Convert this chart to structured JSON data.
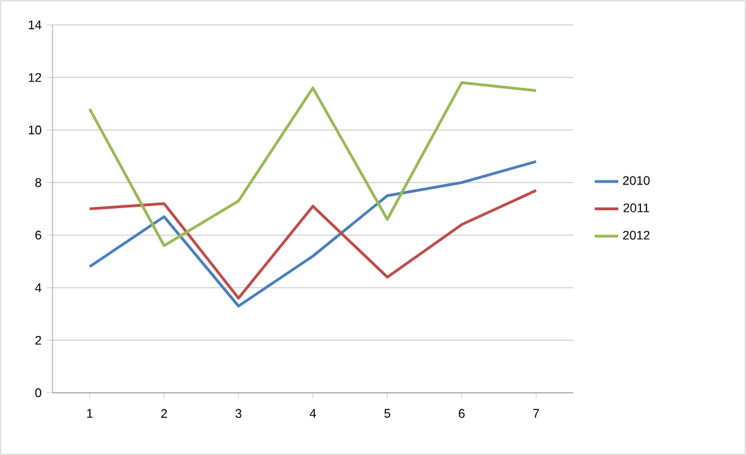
{
  "chart_data": {
    "type": "line",
    "categories": [
      "1",
      "2",
      "3",
      "4",
      "5",
      "6",
      "7"
    ],
    "series": [
      {
        "name": "2010",
        "color": "#4a7ebb",
        "values": [
          4.8,
          6.7,
          3.3,
          5.2,
          7.5,
          8.0,
          8.8
        ]
      },
      {
        "name": "2011",
        "color": "#be4b48",
        "values": [
          7.0,
          7.2,
          3.6,
          7.1,
          4.4,
          6.4,
          7.7
        ]
      },
      {
        "name": "2012",
        "color": "#98b954",
        "values": [
          10.8,
          5.6,
          7.3,
          11.6,
          6.6,
          11.8,
          11.5
        ]
      }
    ],
    "ylim": [
      0,
      14
    ],
    "yticks": [
      0,
      2,
      4,
      6,
      8,
      10,
      12,
      14
    ],
    "grid": "y",
    "legend": "right",
    "marker": "none",
    "line_style": "solid"
  }
}
